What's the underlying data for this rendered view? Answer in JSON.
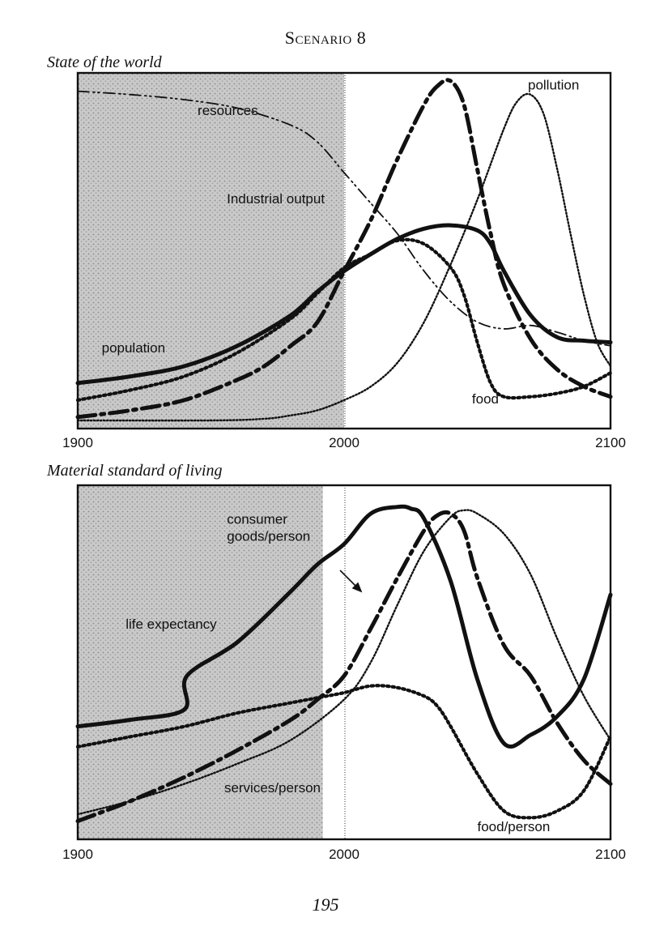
{
  "page": {
    "title": "Scenario 8",
    "page_number": "195"
  },
  "chart_data": [
    {
      "type": "line",
      "title": "State of the world",
      "x_ticks": [
        "1900",
        "2000",
        "2100"
      ],
      "xlim": [
        1900,
        2100
      ],
      "ylim": [
        0,
        1
      ],
      "grid": false,
      "historical_shading": [
        1900,
        2000
      ],
      "series": [
        {
          "name": "resources",
          "style": "dash-dot-dot-thin",
          "label_at": [
            1945,
            0.9
          ],
          "x": [
            1900,
            1920,
            1940,
            1960,
            1980,
            1990,
            2000,
            2010,
            2020,
            2030,
            2040,
            2050,
            2060,
            2070,
            2080,
            2090,
            2100
          ],
          "y": [
            0.97,
            0.96,
            0.945,
            0.92,
            0.87,
            0.82,
            0.73,
            0.64,
            0.55,
            0.44,
            0.35,
            0.29,
            0.27,
            0.28,
            0.26,
            0.235,
            0.22
          ]
        },
        {
          "name": "Industrial output",
          "style": "dash-dot-thick",
          "label_at": [
            1990,
            0.64
          ],
          "x": [
            1900,
            1920,
            1940,
            1960,
            1970,
            1980,
            1990,
            2000,
            2010,
            2020,
            2030,
            2035,
            2040,
            2045,
            2050,
            2055,
            2060,
            2070,
            2080,
            2090,
            2100
          ],
          "y": [
            0.01,
            0.03,
            0.06,
            0.12,
            0.16,
            0.22,
            0.29,
            0.44,
            0.59,
            0.77,
            0.93,
            0.985,
            1.0,
            0.93,
            0.74,
            0.55,
            0.4,
            0.24,
            0.15,
            0.1,
            0.07
          ]
        },
        {
          "name": "pollution",
          "style": "dotted-thin",
          "label_at": [
            2069,
            0.975
          ],
          "x": [
            1900,
            1950,
            1970,
            1980,
            1990,
            2000,
            2010,
            2020,
            2030,
            2040,
            2050,
            2060,
            2065,
            2070,
            2075,
            2080,
            2085,
            2090,
            2095,
            2100
          ],
          "y": [
            0.0,
            0.0,
            0.005,
            0.015,
            0.03,
            0.06,
            0.1,
            0.17,
            0.29,
            0.46,
            0.65,
            0.86,
            0.94,
            0.96,
            0.9,
            0.74,
            0.55,
            0.37,
            0.23,
            0.16
          ]
        },
        {
          "name": "population",
          "style": "solid-thick",
          "label_at": [
            1909,
            0.2
          ],
          "x": [
            1900,
            1920,
            1940,
            1960,
            1980,
            1990,
            2000,
            2010,
            2020,
            2030,
            2040,
            2050,
            2055,
            2060,
            2070,
            2080,
            2090,
            2100
          ],
          "y": [
            0.11,
            0.13,
            0.16,
            0.22,
            0.31,
            0.38,
            0.44,
            0.49,
            0.535,
            0.565,
            0.575,
            0.56,
            0.52,
            0.44,
            0.31,
            0.245,
            0.235,
            0.23
          ]
        },
        {
          "name": "food",
          "style": "dotted-thick",
          "label_at": [
            2048,
            0.05
          ],
          "x": [
            1900,
            1920,
            1940,
            1960,
            1980,
            1990,
            2000,
            2010,
            2020,
            2030,
            2040,
            2045,
            2050,
            2055,
            2060,
            2070,
            2080,
            2090,
            2100
          ],
          "y": [
            0.06,
            0.09,
            0.13,
            0.2,
            0.3,
            0.375,
            0.45,
            0.49,
            0.53,
            0.52,
            0.45,
            0.37,
            0.23,
            0.11,
            0.07,
            0.07,
            0.08,
            0.1,
            0.14
          ]
        }
      ]
    },
    {
      "type": "line",
      "title": "Material standard of living",
      "x_ticks": [
        "1900",
        "2000",
        "2100"
      ],
      "xlim": [
        1900,
        2100
      ],
      "ylim": [
        0,
        1
      ],
      "grid": false,
      "historical_shading": [
        1900,
        1992
      ],
      "series": [
        {
          "name": "consumer goods/person",
          "label_lines": [
            "consumer",
            "goods/person"
          ],
          "style": "dash-dot-thick",
          "label_at": [
            1956,
            0.91
          ],
          "x": [
            1900,
            1920,
            1940,
            1960,
            1980,
            1990,
            2000,
            2010,
            2020,
            2030,
            2035,
            2040,
            2045,
            2050,
            2060,
            2070,
            2080,
            2090,
            2100
          ],
          "y": [
            0.03,
            0.09,
            0.16,
            0.24,
            0.33,
            0.39,
            0.46,
            0.6,
            0.75,
            0.89,
            0.935,
            0.94,
            0.89,
            0.75,
            0.55,
            0.46,
            0.32,
            0.21,
            0.14
          ]
        },
        {
          "name": "life expectancy",
          "style": "solid-thick",
          "label_at": [
            1918,
            0.6
          ],
          "x": [
            1900,
            1920,
            1940,
            1941,
            1960,
            1980,
            1990,
            2000,
            2010,
            2020,
            2025,
            2030,
            2040,
            2050,
            2060,
            2070,
            2080,
            2090,
            2100
          ],
          "y": [
            0.31,
            0.33,
            0.36,
            0.46,
            0.56,
            0.71,
            0.79,
            0.85,
            0.94,
            0.96,
            0.955,
            0.925,
            0.74,
            0.45,
            0.26,
            0.285,
            0.34,
            0.45,
            0.7
          ]
        },
        {
          "name": "services/person",
          "style": "dotted-thin",
          "label_at": [
            1955,
            0.115
          ],
          "x": [
            1900,
            1920,
            1940,
            1960,
            1980,
            2000,
            2010,
            2020,
            2030,
            2040,
            2045,
            2050,
            2060,
            2070,
            2080,
            2090,
            2100
          ],
          "y": [
            0.05,
            0.09,
            0.14,
            0.2,
            0.27,
            0.39,
            0.5,
            0.67,
            0.83,
            0.93,
            0.95,
            0.94,
            0.88,
            0.76,
            0.57,
            0.4,
            0.27
          ]
        },
        {
          "name": "food/person",
          "style": "dotted-thick",
          "label_at": [
            2050,
            0.0
          ],
          "x": [
            1900,
            1920,
            1940,
            1960,
            1980,
            1990,
            2000,
            2010,
            2020,
            2030,
            2035,
            2040,
            2050,
            2060,
            2070,
            2080,
            2090,
            2100
          ],
          "y": [
            0.25,
            0.28,
            0.31,
            0.35,
            0.38,
            0.395,
            0.41,
            0.43,
            0.425,
            0.4,
            0.37,
            0.31,
            0.17,
            0.06,
            0.04,
            0.06,
            0.12,
            0.28
          ]
        }
      ]
    }
  ]
}
